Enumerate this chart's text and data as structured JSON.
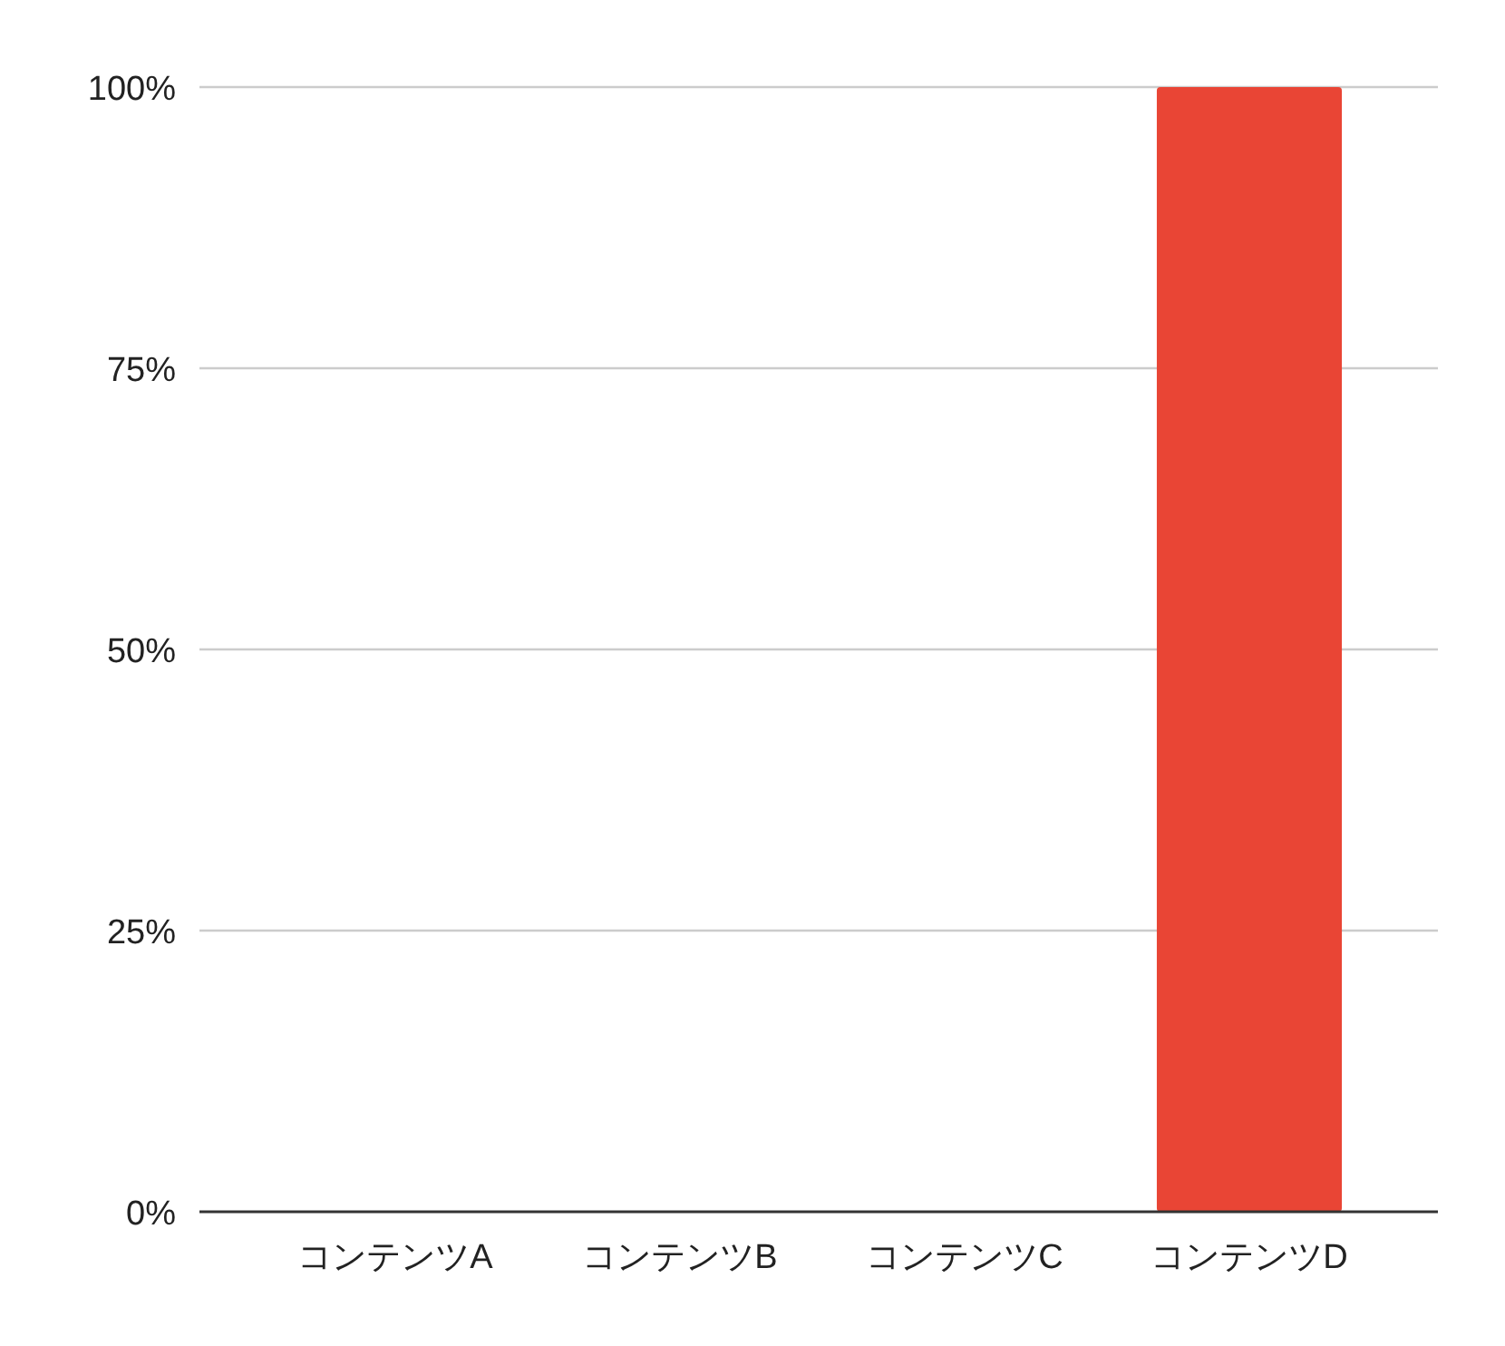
{
  "chart_data": {
    "type": "bar",
    "categories": [
      "コンテンツA",
      "コンテンツB",
      "コンテンツC",
      "コンテンツD"
    ],
    "values": [
      0,
      0,
      0,
      100
    ],
    "color": "#e94535",
    "ylim": [
      0,
      100
    ],
    "yticks": [
      {
        "value": 0,
        "label": "0%"
      },
      {
        "value": 25,
        "label": "25%"
      },
      {
        "value": 50,
        "label": "50%"
      },
      {
        "value": 75,
        "label": "75%"
      },
      {
        "value": 100,
        "label": "100%"
      }
    ],
    "grid": "y"
  }
}
